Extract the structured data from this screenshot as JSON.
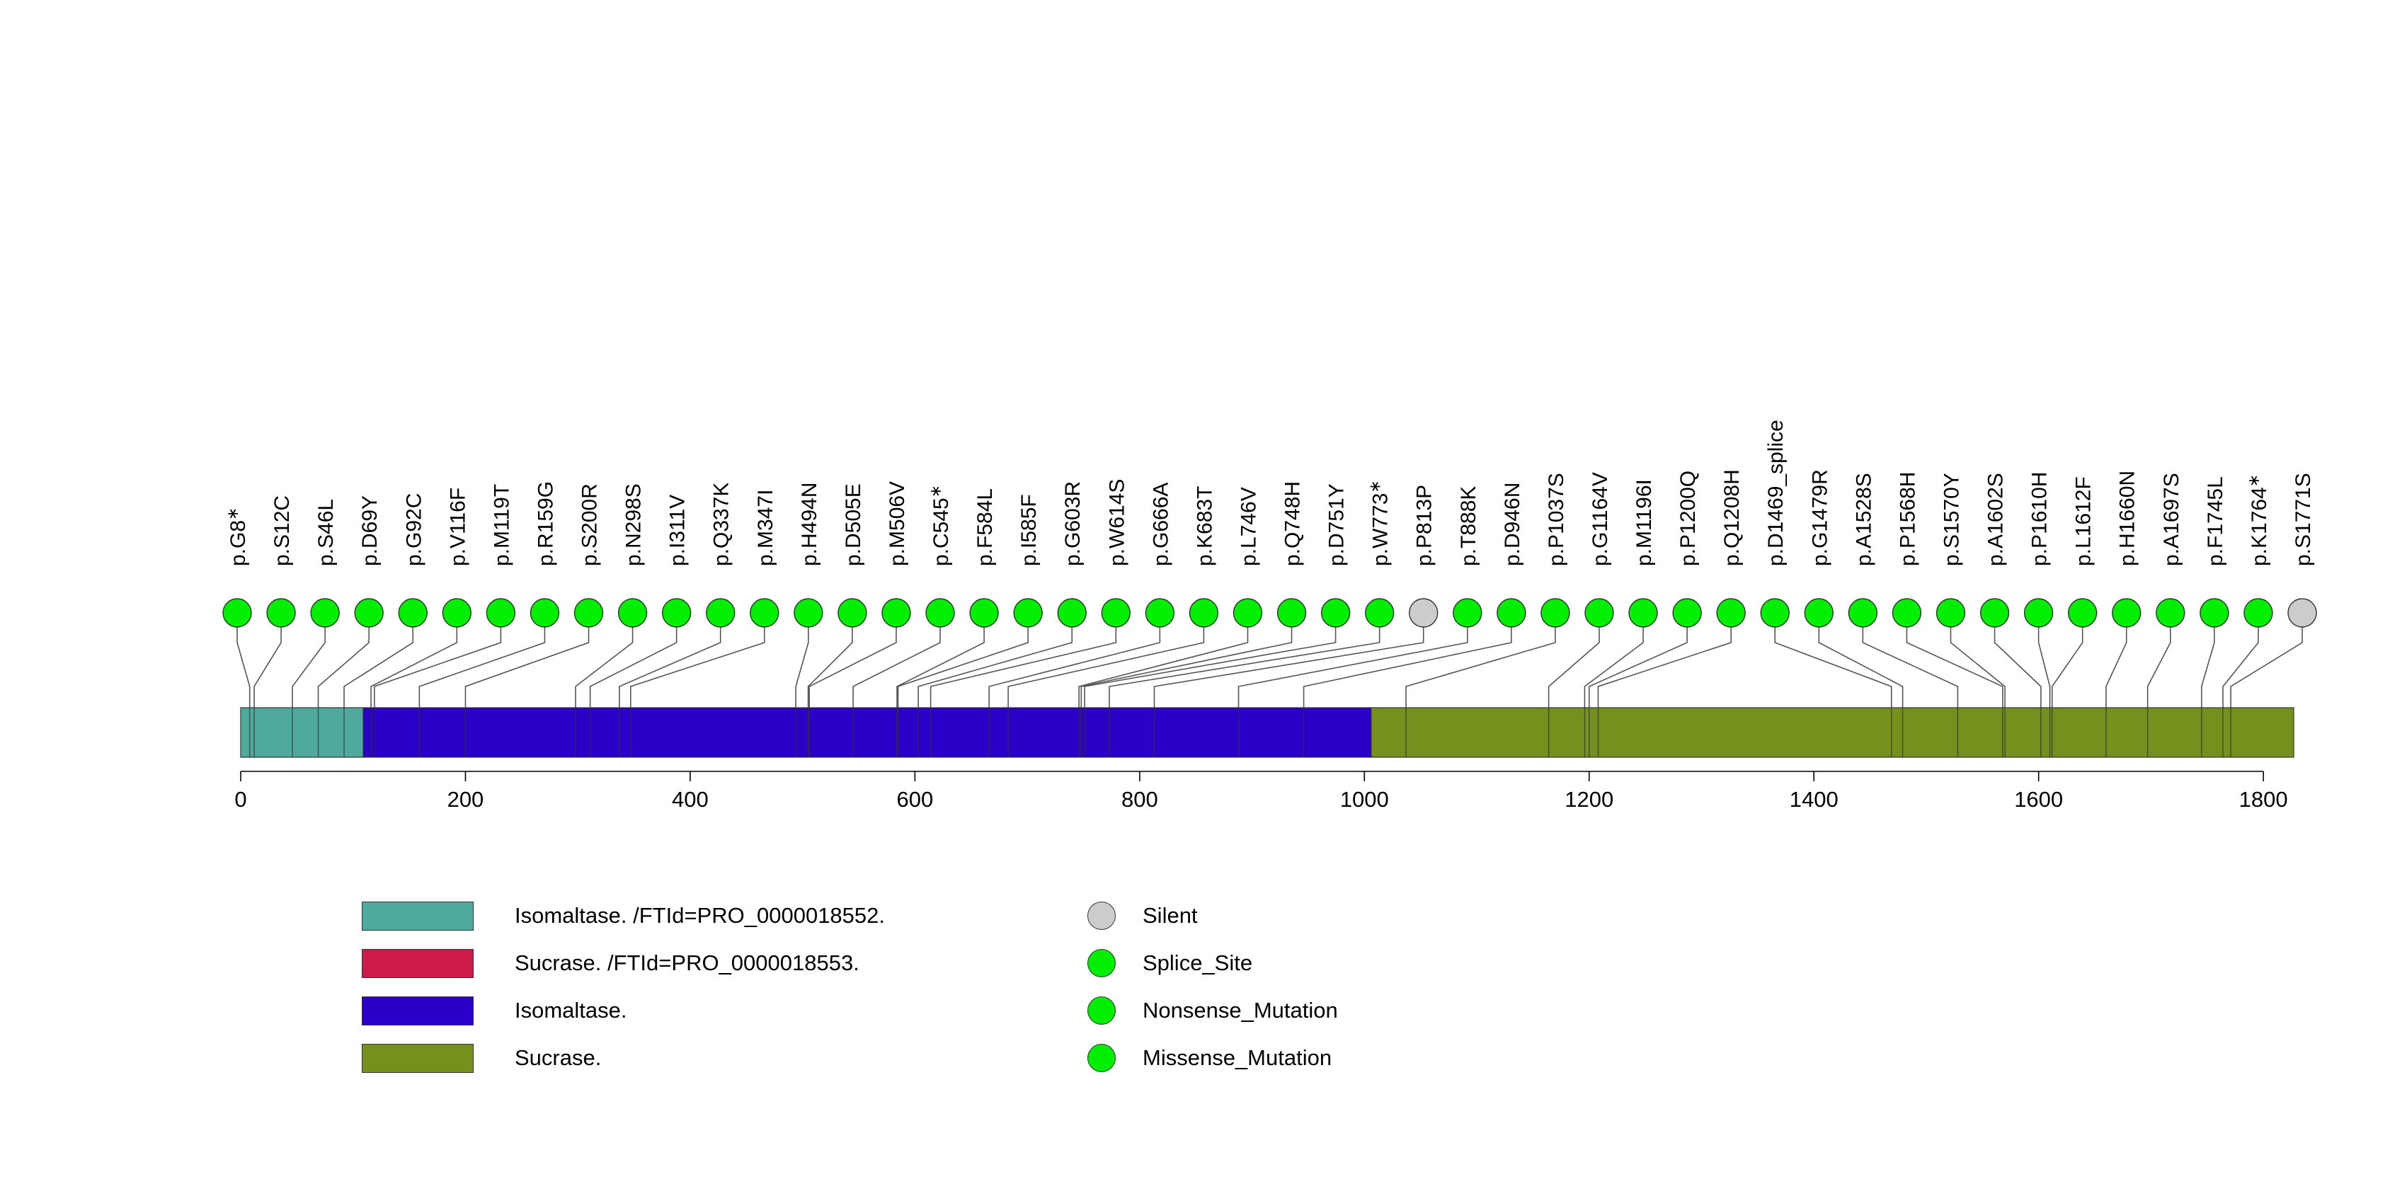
{
  "chart_data": {
    "type": "lollipop",
    "title": "",
    "xlabel": "",
    "ylabel": "",
    "xlim": [
      0,
      1827
    ],
    "x_ticks": [
      0,
      200,
      400,
      600,
      800,
      1000,
      1200,
      1400,
      1600,
      1800
    ],
    "protein_length": 1827,
    "domains": [
      {
        "name": "Isomaltase. /FTId=PRO_0000018552.",
        "start": 1,
        "end": 110,
        "color": "#4fa99c"
      },
      {
        "name": "Isomaltase.",
        "start": 110,
        "end": 1007,
        "color": "#2a00c8"
      },
      {
        "name": "Sucrase.",
        "start": 1007,
        "end": 1827,
        "color": "#76901e"
      }
    ],
    "legend_domains": [
      {
        "label": "Isomaltase. /FTId=PRO_0000018552.",
        "color": "#4fa99c"
      },
      {
        "label": "Sucrase. /FTId=PRO_0000018553.",
        "color": "#cc1a4a"
      },
      {
        "label": "Isomaltase.",
        "color": "#2a00c8"
      },
      {
        "label": "Sucrase.",
        "color": "#76901e"
      }
    ],
    "legend_mutations": [
      {
        "label": "Silent",
        "color": "#cccccc"
      },
      {
        "label": "Splice_Site",
        "color": "#00ee00"
      },
      {
        "label": "Nonsense_Mutation",
        "color": "#00ee00"
      },
      {
        "label": "Missense_Mutation",
        "color": "#00ee00"
      }
    ],
    "mutations": [
      {
        "label": "p.G8",
        "pos": 8,
        "type": "Nonsense_Mutation",
        "star": true,
        "color": "#00ee00"
      },
      {
        "label": "p.S12C",
        "pos": 12,
        "type": "Missense_Mutation",
        "star": false,
        "color": "#00ee00"
      },
      {
        "label": "p.S46L",
        "pos": 46,
        "type": "Missense_Mutation",
        "star": false,
        "color": "#00ee00"
      },
      {
        "label": "p.D69Y",
        "pos": 69,
        "type": "Missense_Mutation",
        "star": false,
        "color": "#00ee00"
      },
      {
        "label": "p.G92C",
        "pos": 92,
        "type": "Missense_Mutation",
        "star": false,
        "color": "#00ee00"
      },
      {
        "label": "p.V116F",
        "pos": 116,
        "type": "Missense_Mutation",
        "star": false,
        "color": "#00ee00"
      },
      {
        "label": "p.M119T",
        "pos": 119,
        "type": "Missense_Mutation",
        "star": false,
        "color": "#00ee00"
      },
      {
        "label": "p.R159G",
        "pos": 159,
        "type": "Missense_Mutation",
        "star": false,
        "color": "#00ee00"
      },
      {
        "label": "p.S200R",
        "pos": 200,
        "type": "Missense_Mutation",
        "star": false,
        "color": "#00ee00"
      },
      {
        "label": "p.N298S",
        "pos": 298,
        "type": "Missense_Mutation",
        "star": false,
        "color": "#00ee00"
      },
      {
        "label": "p.I311V",
        "pos": 311,
        "type": "Missense_Mutation",
        "star": false,
        "color": "#00ee00"
      },
      {
        "label": "p.Q337K",
        "pos": 337,
        "type": "Missense_Mutation",
        "star": false,
        "color": "#00ee00"
      },
      {
        "label": "p.M347I",
        "pos": 347,
        "type": "Missense_Mutation",
        "star": false,
        "color": "#00ee00"
      },
      {
        "label": "p.H494N",
        "pos": 494,
        "type": "Missense_Mutation",
        "star": false,
        "color": "#00ee00"
      },
      {
        "label": "p.D505E",
        "pos": 505,
        "type": "Missense_Mutation",
        "star": false,
        "color": "#00ee00"
      },
      {
        "label": "p.M506V",
        "pos": 506,
        "type": "Missense_Mutation",
        "star": false,
        "color": "#00ee00"
      },
      {
        "label": "p.C545",
        "pos": 545,
        "type": "Nonsense_Mutation",
        "star": true,
        "color": "#00ee00"
      },
      {
        "label": "p.F584L",
        "pos": 584,
        "type": "Missense_Mutation",
        "star": false,
        "color": "#00ee00"
      },
      {
        "label": "p.I585F",
        "pos": 585,
        "type": "Missense_Mutation",
        "star": false,
        "color": "#00ee00"
      },
      {
        "label": "p.G603R",
        "pos": 603,
        "type": "Missense_Mutation",
        "star": false,
        "color": "#00ee00"
      },
      {
        "label": "p.W614S",
        "pos": 614,
        "type": "Missense_Mutation",
        "star": false,
        "color": "#00ee00"
      },
      {
        "label": "p.G666A",
        "pos": 666,
        "type": "Missense_Mutation",
        "star": false,
        "color": "#00ee00"
      },
      {
        "label": "p.K683T",
        "pos": 683,
        "type": "Missense_Mutation",
        "star": false,
        "color": "#00ee00"
      },
      {
        "label": "p.L746V",
        "pos": 746,
        "type": "Missense_Mutation",
        "star": false,
        "color": "#00ee00"
      },
      {
        "label": "p.Q748H",
        "pos": 748,
        "type": "Missense_Mutation",
        "star": false,
        "color": "#00ee00"
      },
      {
        "label": "p.D751Y",
        "pos": 751,
        "type": "Missense_Mutation",
        "star": false,
        "color": "#00ee00"
      },
      {
        "label": "p.W773",
        "pos": 773,
        "type": "Nonsense_Mutation",
        "star": true,
        "color": "#00ee00"
      },
      {
        "label": "p.P813P",
        "pos": 813,
        "type": "Silent",
        "star": false,
        "color": "#cccccc"
      },
      {
        "label": "p.T888K",
        "pos": 888,
        "type": "Missense_Mutation",
        "star": false,
        "color": "#00ee00"
      },
      {
        "label": "p.D946N",
        "pos": 946,
        "type": "Missense_Mutation",
        "star": false,
        "color": "#00ee00"
      },
      {
        "label": "p.P1037S",
        "pos": 1037,
        "type": "Missense_Mutation",
        "star": false,
        "color": "#00ee00"
      },
      {
        "label": "p.G1164V",
        "pos": 1164,
        "type": "Missense_Mutation",
        "star": false,
        "color": "#00ee00"
      },
      {
        "label": "p.M1196I",
        "pos": 1196,
        "type": "Missense_Mutation",
        "star": false,
        "color": "#00ee00"
      },
      {
        "label": "p.P1200Q",
        "pos": 1200,
        "type": "Missense_Mutation",
        "star": false,
        "color": "#00ee00"
      },
      {
        "label": "p.Q1208H",
        "pos": 1208,
        "type": "Missense_Mutation",
        "star": false,
        "color": "#00ee00"
      },
      {
        "label": "p.D1469_splice",
        "pos": 1469,
        "type": "Splice_Site",
        "star": false,
        "color": "#00ee00"
      },
      {
        "label": "p.G1479R",
        "pos": 1479,
        "type": "Missense_Mutation",
        "star": false,
        "color": "#00ee00"
      },
      {
        "label": "p.A1528S",
        "pos": 1528,
        "type": "Missense_Mutation",
        "star": false,
        "color": "#00ee00"
      },
      {
        "label": "p.P1568H",
        "pos": 1568,
        "type": "Missense_Mutation",
        "star": false,
        "color": "#00ee00"
      },
      {
        "label": "p.S1570Y",
        "pos": 1570,
        "type": "Missense_Mutation",
        "star": false,
        "color": "#00ee00"
      },
      {
        "label": "p.A1602S",
        "pos": 1602,
        "type": "Missense_Mutation",
        "star": false,
        "color": "#00ee00"
      },
      {
        "label": "p.P1610H",
        "pos": 1610,
        "type": "Missense_Mutation",
        "star": false,
        "color": "#00ee00"
      },
      {
        "label": "p.L1612F",
        "pos": 1612,
        "type": "Missense_Mutation",
        "star": false,
        "color": "#00ee00"
      },
      {
        "label": "p.H1660N",
        "pos": 1660,
        "type": "Missense_Mutation",
        "star": false,
        "color": "#00ee00"
      },
      {
        "label": "p.A1697S",
        "pos": 1697,
        "type": "Missense_Mutation",
        "star": false,
        "color": "#00ee00"
      },
      {
        "label": "p.F1745L",
        "pos": 1745,
        "type": "Missense_Mutation",
        "star": false,
        "color": "#00ee00"
      },
      {
        "label": "p.K1764",
        "pos": 1764,
        "type": "Nonsense_Mutation",
        "star": true,
        "color": "#00ee00"
      },
      {
        "label": "p.S1771S",
        "pos": 1771,
        "type": "Silent",
        "star": false,
        "color": "#cccccc"
      }
    ]
  }
}
